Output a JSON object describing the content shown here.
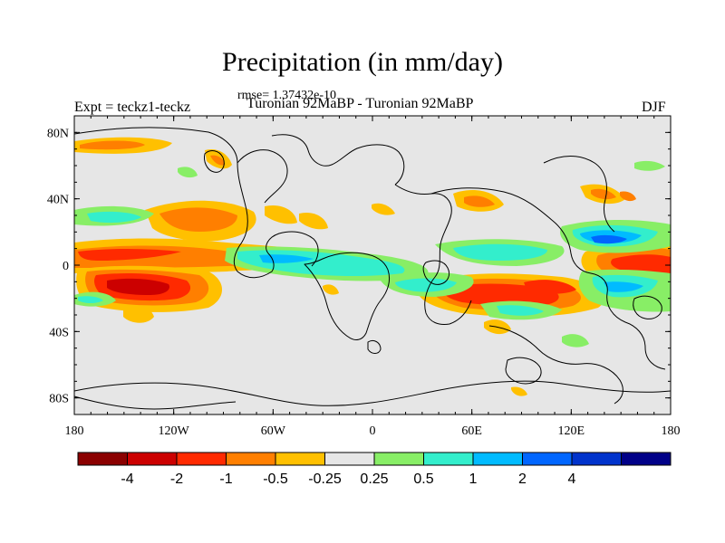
{
  "chart_data": {
    "type": "heatmap",
    "title": "Precipitation (in mm/day)",
    "rmse_label": "rmse= 1.37432e-10",
    "experiment_label": "Expt = teckz1-teckz",
    "subtitle": "Turonian  92MaBP - Turonian  92MaBP",
    "season": "DJF",
    "x_ticks": [
      "180",
      "120W",
      "60W",
      "0",
      "60E",
      "120E",
      "180"
    ],
    "x_range": [
      -180,
      180
    ],
    "y_ticks": [
      "80N",
      "40N",
      "0",
      "40S",
      "80S"
    ],
    "y_range": [
      -90,
      90
    ],
    "colorbar": {
      "colors": [
        "#8b0000",
        "#cc0000",
        "#ff2a00",
        "#ff7f00",
        "#ffc000",
        "#e6e6e6",
        "#88ee66",
        "#33eecc",
        "#00bbff",
        "#0066ff",
        "#0033cc",
        "#000088"
      ],
      "labels": [
        "-4",
        "-2",
        "-1",
        "-0.5",
        "-0.25",
        "0.25",
        "0.5",
        "1",
        "2",
        "4"
      ]
    },
    "colors": {
      "ocean_background": "#e6e6e6",
      "coastline": "#000000"
    }
  }
}
